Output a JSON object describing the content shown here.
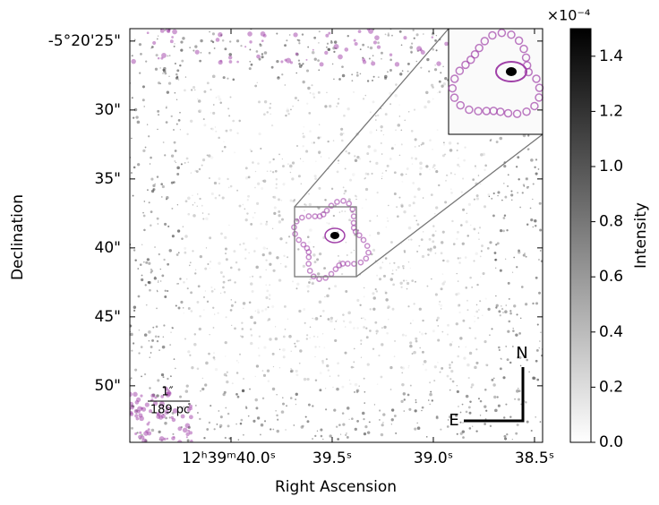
{
  "chart_data": {
    "type": "image",
    "xlabel": "Right Ascension",
    "ylabel": "Declination",
    "xlim": [
      40.5,
      38.46
    ],
    "xticks": [
      {
        "value": 40.0,
        "label": "12ʰ39ᵐ40.0ˢ"
      },
      {
        "value": 39.5,
        "label": "39.5ˢ"
      },
      {
        "value": 39.0,
        "label": "39.0ˢ"
      },
      {
        "value": 38.5,
        "label": "38.5ˢ"
      }
    ],
    "ylim": [
      24.1,
      54.1
    ],
    "yticks": [
      {
        "value": 25,
        "label": "-5°20'25\""
      },
      {
        "value": 30,
        "label": "30\""
      },
      {
        "value": 35,
        "label": "35\""
      },
      {
        "value": 40,
        "label": "40\""
      },
      {
        "value": 45,
        "label": "45\""
      },
      {
        "value": 50,
        "label": "50\""
      }
    ],
    "colorbar": {
      "label": "Intensity",
      "multiplier": "×10⁻⁴",
      "ylim": [
        0,
        1.5
      ],
      "yticks": [
        {
          "value": 0,
          "label": "0.0"
        },
        {
          "value": 0.2,
          "label": "0.2"
        },
        {
          "value": 0.4,
          "label": "0.4"
        },
        {
          "value": 0.6,
          "label": "0.6"
        },
        {
          "value": 0.8,
          "label": "0.8"
        },
        {
          "value": 1.0,
          "label": "1.0"
        },
        {
          "value": 1.2,
          "label": "1.2"
        },
        {
          "value": 1.4,
          "label": "1.4"
        }
      ]
    },
    "scale_bar": {
      "angle": "1″",
      "distance": "189 pc"
    },
    "compass": {
      "north": "N",
      "east": "E"
    },
    "contour_color": "#a040a8"
  }
}
